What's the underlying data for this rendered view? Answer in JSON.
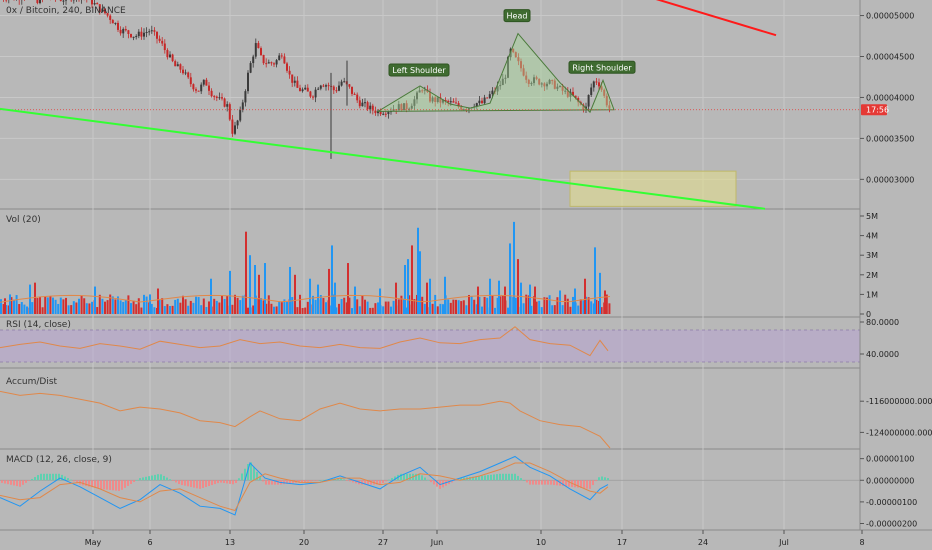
{
  "header": {
    "symbol_title": "0x / Bitcoin, 240, BINANCE"
  },
  "colors": {
    "background": "#b8b8b8",
    "grid": "#c8c8c8",
    "candle_up": "#3a3a3a",
    "candle_down": "#c62828",
    "vol_up": "#2196f3",
    "vol_down": "#d32f2f",
    "green_line": "#33ff33",
    "red_line": "#ff1a1a",
    "pattern_fill": "#a6d69a",
    "pattern_stroke": "#4a7a3a",
    "target_box": "#e6e08a",
    "rsi_line": "#e0884a",
    "rsi_band": "#b89fd6",
    "ad_line": "#e0884a",
    "macd_line": "#2196f3",
    "signal_line": "#e0884a",
    "last_price_badge": "#e53935"
  },
  "chart_data": [
    {
      "type": "line",
      "title": "0x / Bitcoin, 240, BINANCE",
      "x_tick_labels": [
        "May",
        "6",
        "13",
        "20",
        "27",
        "Jun",
        "10",
        "17",
        "24",
        "Jul",
        "8"
      ],
      "y_tick_labels": [
        "0.00005000",
        "0.00004500",
        "0.00004000",
        "0.00003500",
        "0.00003000"
      ],
      "ylim": [
        2.65e-05,
        5.19e-05
      ],
      "last_price_countdown": "17:56",
      "annotations": [
        "Left Shoulder",
        "Head",
        "Right Shoulder"
      ],
      "close_path": {
        "x": [
          0,
          5,
          10,
          15,
          22,
          30,
          40,
          48,
          55,
          62,
          70,
          75,
          82,
          90,
          98,
          105,
          112,
          120,
          128,
          135,
          142,
          150,
          155,
          160,
          168,
          175,
          182,
          190,
          198,
          205,
          212,
          218,
          224,
          228,
          232,
          236,
          240,
          244,
          248,
          252,
          256,
          262,
          268,
          275,
          282,
          290,
          298,
          305,
          312,
          320,
          328,
          335,
          342,
          350,
          358,
          365,
          372,
          378,
          385,
          392,
          400,
          408,
          415,
          422,
          430,
          438,
          445,
          452,
          460,
          468,
          475,
          482,
          490,
          498,
          505,
          510,
          515,
          520,
          528,
          535,
          542,
          550,
          558,
          565,
          572,
          580,
          586,
          590,
          595,
          600,
          605,
          610
        ],
        "y": [
          5.22e-05,
          5.22e-05,
          5.28e-05,
          5.2e-05,
          5.25e-05,
          5.22e-05,
          5.18e-05,
          5.24e-05,
          5.22e-05,
          5.2e-05,
          5.22e-05,
          5.26e-05,
          5.24e-05,
          5.19e-05,
          5.1e-05,
          5.03e-05,
          4.95e-05,
          4.83e-05,
          4.79e-05,
          4.75e-05,
          4.78e-05,
          4.82e-05,
          4.75e-05,
          4.68e-05,
          4.52e-05,
          4.38e-05,
          4.34e-05,
          4.18e-05,
          4.08e-05,
          4.2e-05,
          4.05e-05,
          3.98e-05,
          3.93e-05,
          3.89e-05,
          3.58e-05,
          3.65e-05,
          3.8e-05,
          4.02e-05,
          4.28e-05,
          4.48e-05,
          4.65e-05,
          4.45e-05,
          4.42e-05,
          4.42e-05,
          4.55e-05,
          4.25e-05,
          4.1e-05,
          4.08e-05,
          4.02e-05,
          4.18e-05,
          4.15e-05,
          4.08e-05,
          4.2e-05,
          4.1e-05,
          3.95e-05,
          3.9e-05,
          3.85e-05,
          3.83e-05,
          3.84e-05,
          3.86e-05,
          3.89e-05,
          3.88e-05,
          3.98e-05,
          4.12e-05,
          3.98e-05,
          3.96e-05,
          3.94e-05,
          3.93e-05,
          3.88e-05,
          3.88e-05,
          3.93e-05,
          3.93e-05,
          4.03e-05,
          4.12e-05,
          4.25e-05,
          4.58e-05,
          4.48e-05,
          4.38e-05,
          4.21e-05,
          4.21e-05,
          4.18e-05,
          4.18e-05,
          4.12e-05,
          4.06e-05,
          4.02e-05,
          3.91e-05,
          3.87e-05,
          4.09e-05,
          4.22e-05,
          4.16e-05,
          3.98e-05,
          3.85e-05
        ]
      },
      "lines": [
        {
          "name": "",
          "color": "#33ff33",
          "x": [
            0,
            765
          ],
          "y": [
            3.86e-05,
            2.64e-05
          ]
        },
        {
          "name": "",
          "color": "#ff1a1a",
          "x": [
            605,
            776
          ],
          "y": [
            5.39e-05,
            4.76e-05
          ]
        }
      ],
      "head_and_shoulders": {
        "x": [
          378,
          420,
          450,
          470,
          490,
          518,
          560,
          590,
          603,
          614
        ],
        "y": [
          3.83e-05,
          4.14e-05,
          3.92e-05,
          3.87e-05,
          3.93e-05,
          4.78e-05,
          4.18e-05,
          3.82e-05,
          4.21e-05,
          3.85e-05
        ]
      },
      "target_zone": {
        "x": [
          570,
          736
        ],
        "y": [
          2.67e-05,
          3.1e-05
        ]
      }
    },
    {
      "type": "bar",
      "title": "Vol (20)",
      "y_tick_labels": [
        "5M",
        "4M",
        "3M",
        "2M",
        "1M",
        "0"
      ],
      "ylim": [
        0,
        5000000
      ],
      "spikes": {
        "x": [
          5,
          10,
          30,
          35,
          95,
          150,
          158,
          211,
          230,
          246,
          250,
          255,
          259,
          265,
          290,
          295,
          310,
          318,
          329,
          332,
          335,
          348,
          355,
          380,
          396,
          405,
          408,
          412,
          418,
          420,
          427,
          430,
          445,
          478,
          490,
          499,
          505,
          510,
          514,
          518,
          521,
          530,
          535,
          560,
          575,
          585,
          595,
          600,
          605
        ],
        "values": [
          800000,
          1000000,
          1500000,
          1600000,
          1400000,
          1000000,
          1300000,
          1800000,
          2200000,
          4200000,
          3000000,
          2500000,
          2000000,
          2600000,
          2400000,
          2000000,
          1800000,
          1500000,
          2300000,
          3500000,
          1600000,
          2600000,
          1400000,
          1300000,
          1600000,
          2500000,
          2800000,
          3500000,
          4400000,
          3200000,
          1600000,
          1800000,
          1900000,
          1400000,
          1800000,
          1700000,
          1400000,
          3600000,
          4700000,
          2800000,
          1600000,
          1500000,
          1400000,
          1200000,
          1300000,
          1800000,
          3400000,
          2100000,
          1200000
        ]
      }
    },
    {
      "type": "line",
      "title": "RSI (14, close)",
      "y_tick_labels": [
        "80.0000",
        "40.0000"
      ],
      "ylim": [
        25,
        85
      ],
      "band": [
        30,
        70
      ],
      "x": [
        0,
        20,
        40,
        60,
        80,
        100,
        120,
        140,
        160,
        180,
        200,
        220,
        240,
        260,
        280,
        300,
        320,
        340,
        360,
        380,
        400,
        420,
        440,
        460,
        480,
        500,
        515,
        530,
        550,
        570,
        590,
        600,
        608
      ],
      "values": [
        48,
        52,
        55,
        50,
        47,
        53,
        50,
        46,
        56,
        52,
        48,
        50,
        58,
        53,
        55,
        50,
        48,
        52,
        48,
        47,
        55,
        60,
        54,
        53,
        58,
        60,
        74,
        58,
        53,
        51,
        38,
        57,
        44
      ]
    },
    {
      "type": "line",
      "title": "Accum/Dist",
      "y_tick_labels": [
        "-116000000.0000",
        "-124000000.0000"
      ],
      "ylim": [
        -128000000,
        -108000000
      ],
      "x": [
        0,
        20,
        40,
        60,
        80,
        100,
        120,
        140,
        160,
        180,
        200,
        220,
        235,
        250,
        260,
        280,
        300,
        320,
        340,
        360,
        380,
        400,
        420,
        440,
        460,
        480,
        500,
        510,
        520,
        540,
        560,
        580,
        600,
        610
      ],
      "values": [
        -113500000,
        -114500000,
        -114000000,
        -114500000,
        -115500000,
        -116500000,
        -118500000,
        -117500000,
        -118000000,
        -119000000,
        -121000000,
        -121500000,
        -122500000,
        -120000000,
        -118500000,
        -120500000,
        -121000000,
        -118000000,
        -116500000,
        -118000000,
        -118500000,
        -118000000,
        -118000000,
        -117500000,
        -117000000,
        -117000000,
        -116000000,
        -116500000,
        -118500000,
        -121000000,
        -122000000,
        -122500000,
        -125000000,
        -128000000
      ]
    },
    {
      "type": "bar",
      "title": "MACD (12, 26, close, 9)",
      "y_tick_labels": [
        "0.00000100",
        "0.00000000",
        "-0.00000100",
        "-0.00000200"
      ],
      "ylim": [
        -2.3e-06,
        1.4e-06
      ],
      "macd": {
        "x": [
          0,
          20,
          40,
          60,
          80,
          100,
          120,
          140,
          160,
          180,
          200,
          220,
          235,
          250,
          265,
          280,
          300,
          320,
          340,
          360,
          380,
          400,
          420,
          440,
          460,
          480,
          500,
          515,
          530,
          550,
          570,
          590,
          600,
          608
        ],
        "values": [
          -8e-07,
          -1.2e-06,
          -5e-07,
          1e-07,
          -3e-07,
          -8e-07,
          -1.3e-06,
          -9e-07,
          -2e-07,
          -6e-07,
          -1.2e-06,
          -1.3e-06,
          -1.6e-06,
          8e-07,
          1e-07,
          -1e-07,
          -2e-07,
          -1e-07,
          2e-07,
          -1e-07,
          -4e-07,
          2e-07,
          6e-07,
          -2e-07,
          1e-07,
          4e-07,
          8e-07,
          1.1e-06,
          6e-07,
          2e-07,
          -4e-07,
          -9e-07,
          -4e-07,
          -2e-07
        ]
      },
      "signal": {
        "x": [
          0,
          20,
          40,
          60,
          80,
          100,
          120,
          140,
          160,
          180,
          200,
          220,
          235,
          250,
          265,
          280,
          300,
          320,
          340,
          360,
          380,
          400,
          420,
          440,
          460,
          480,
          500,
          515,
          530,
          550,
          570,
          590,
          600,
          608
        ],
        "values": [
          -7e-07,
          -9e-07,
          -8e-07,
          -2e-07,
          -1e-07,
          -4e-07,
          -8e-07,
          -1e-06,
          -5e-07,
          -4e-07,
          -8e-07,
          -1.2e-06,
          -1.4e-06,
          -1e-07,
          3e-07,
          1e-07,
          -1e-07,
          -1e-07,
          1e-07,
          1e-07,
          -2e-07,
          -1e-07,
          3e-07,
          2e-07,
          0.0,
          2e-07,
          5e-07,
          8e-07,
          8e-07,
          4e-07,
          -1e-07,
          -5e-07,
          -6e-07,
          -3e-07
        ]
      }
    }
  ]
}
